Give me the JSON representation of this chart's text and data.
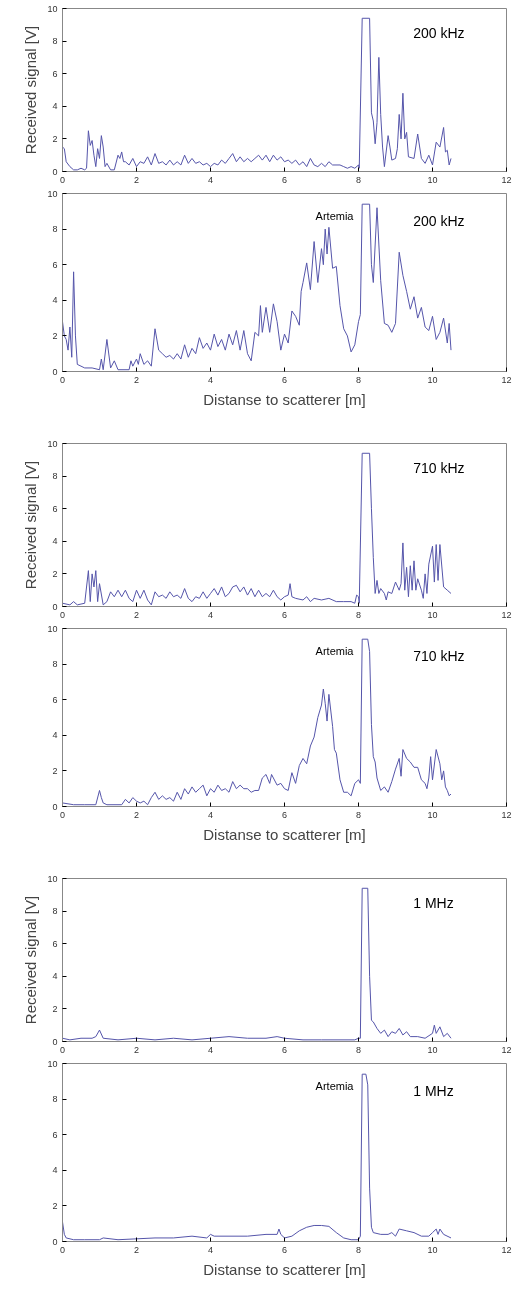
{
  "chart_data": [
    {
      "type": "line",
      "ylabel": "Received signal [V]",
      "xlim": [
        0,
        12
      ],
      "ylim": [
        0,
        10
      ],
      "xticks": [
        0,
        2,
        4,
        6,
        8,
        10,
        12
      ],
      "yticks": [
        0,
        2,
        4,
        6,
        8,
        10
      ],
      "grid": false,
      "annotations": [
        "200 kHz"
      ],
      "x": [
        0,
        0.05,
        0.1,
        0.2,
        0.3,
        0.4,
        0.5,
        0.6,
        0.65,
        0.7,
        0.75,
        0.8,
        0.85,
        0.9,
        0.95,
        1.0,
        1.05,
        1.1,
        1.15,
        1.2,
        1.3,
        1.4,
        1.5,
        1.55,
        1.6,
        1.65,
        1.7,
        1.8,
        1.9,
        2.0,
        2.1,
        2.2,
        2.3,
        2.4,
        2.5,
        2.6,
        2.7,
        2.8,
        2.9,
        3.0,
        3.1,
        3.2,
        3.3,
        3.4,
        3.5,
        3.6,
        3.7,
        3.8,
        3.9,
        4.0,
        4.1,
        4.2,
        4.3,
        4.4,
        4.5,
        4.6,
        4.7,
        4.8,
        4.9,
        5.0,
        5.1,
        5.2,
        5.3,
        5.4,
        5.5,
        5.6,
        5.7,
        5.8,
        5.9,
        6.0,
        6.1,
        6.2,
        6.3,
        6.4,
        6.5,
        6.6,
        6.7,
        6.8,
        6.9,
        7.0,
        7.1,
        7.2,
        7.3,
        7.5,
        7.6,
        7.7,
        7.8,
        7.9,
        8.0,
        8.02,
        8.1,
        8.3,
        8.35,
        8.4,
        8.45,
        8.5,
        8.55,
        8.6,
        8.65,
        8.7,
        8.8,
        8.85,
        8.9,
        9.0,
        9.05,
        9.1,
        9.15,
        9.2,
        9.25,
        9.3,
        9.35,
        9.5,
        9.6,
        9.7,
        9.8,
        9.9,
        10.0,
        10.1,
        10.2,
        10.3,
        10.35,
        10.4,
        10.45,
        10.5
      ],
      "series": [
        {
          "color": "#5555aa",
          "values": [
            1.5,
            1.4,
            0.6,
            0.3,
            0.1,
            0.1,
            0.2,
            0.1,
            0.2,
            2.5,
            1.6,
            1.9,
            1.0,
            0.3,
            1.4,
            0.8,
            2.2,
            1.5,
            0.3,
            0.5,
            0.1,
            0.1,
            1.0,
            0.8,
            1.2,
            0.6,
            0.6,
            0.4,
            0.8,
            0.3,
            0.6,
            0.5,
            0.9,
            0.4,
            1.1,
            0.5,
            0.6,
            0.4,
            0.7,
            0.4,
            0.6,
            0.4,
            1.0,
            0.5,
            0.8,
            0.5,
            0.6,
            0.4,
            0.5,
            0.3,
            0.5,
            0.4,
            0.7,
            0.5,
            0.8,
            1.1,
            0.6,
            0.9,
            0.6,
            0.8,
            0.6,
            0.8,
            1.0,
            0.7,
            1.0,
            0.6,
            1.0,
            0.7,
            0.9,
            0.6,
            0.7,
            0.5,
            0.7,
            0.4,
            0.6,
            0.3,
            0.8,
            0.4,
            0.3,
            0.5,
            0.3,
            0.6,
            0.4,
            0.4,
            0.3,
            0.2,
            0.3,
            0.2,
            0.4,
            0.2,
            9.4,
            9.4,
            3.6,
            3.1,
            1.7,
            3.0,
            7.0,
            3.5,
            1.5,
            0.3,
            2.2,
            1.5,
            0.7,
            0.8,
            1.4,
            3.5,
            2.0,
            4.8,
            2.0,
            2.4,
            0.9,
            0.8,
            2.3,
            0.8,
            0.5,
            1.0,
            0.4,
            1.8,
            1.5,
            2.7,
            1.2,
            1.3,
            0.4,
            0.8
          ]
        }
      ]
    },
    {
      "type": "line",
      "xlabel": "Distanse to scatterer [m]",
      "xlim": [
        0,
        12
      ],
      "ylim": [
        0,
        10
      ],
      "xticks": [
        0,
        2,
        4,
        6,
        8,
        10,
        12
      ],
      "yticks": [
        0,
        2,
        4,
        6,
        8,
        10
      ],
      "grid": false,
      "annotations": [
        "200 kHz",
        "Artemia"
      ],
      "x": [
        0,
        0.05,
        0.1,
        0.15,
        0.2,
        0.25,
        0.3,
        0.35,
        0.4,
        0.5,
        0.6,
        0.8,
        1.0,
        1.05,
        1.1,
        1.2,
        1.3,
        1.4,
        1.5,
        1.8,
        1.85,
        1.9,
        2.0,
        2.05,
        2.1,
        2.2,
        2.3,
        2.4,
        2.5,
        2.6,
        2.7,
        2.8,
        2.9,
        3.0,
        3.1,
        3.2,
        3.3,
        3.4,
        3.5,
        3.6,
        3.7,
        3.8,
        3.9,
        4.0,
        4.1,
        4.2,
        4.3,
        4.4,
        4.5,
        4.6,
        4.7,
        4.8,
        4.9,
        5.0,
        5.1,
        5.2,
        5.3,
        5.35,
        5.4,
        5.5,
        5.6,
        5.7,
        5.8,
        5.9,
        6.0,
        6.1,
        6.2,
        6.3,
        6.4,
        6.45,
        6.5,
        6.6,
        6.7,
        6.8,
        6.9,
        7.0,
        7.05,
        7.1,
        7.15,
        7.2,
        7.3,
        7.4,
        7.5,
        7.6,
        7.7,
        7.8,
        7.9,
        8.0,
        8.05,
        8.1,
        8.3,
        8.35,
        8.4,
        8.5,
        8.6,
        8.7,
        8.8,
        8.9,
        9.0,
        9.1,
        9.2,
        9.3,
        9.4,
        9.5,
        9.6,
        9.7,
        9.8,
        9.9,
        10.0,
        10.1,
        10.2,
        10.3,
        10.4,
        10.45,
        10.5
      ],
      "series": [
        {
          "color": "#5555aa",
          "values": [
            2.8,
            2.0,
            1.8,
            1.2,
            2.5,
            0.8,
            5.6,
            2.0,
            0.4,
            0.3,
            0.2,
            0.2,
            0.1,
            0.7,
            0.1,
            1.8,
            0.2,
            0.6,
            0.1,
            0.1,
            0.6,
            0.3,
            0.7,
            0.4,
            1.0,
            0.4,
            0.6,
            0.3,
            2.4,
            1.2,
            1.0,
            0.8,
            0.9,
            0.7,
            1.0,
            0.7,
            1.5,
            0.8,
            1.3,
            1.0,
            1.9,
            1.3,
            1.6,
            1.2,
            2.1,
            1.4,
            1.8,
            1.2,
            2.1,
            1.5,
            2.3,
            1.2,
            2.3,
            1.0,
            0.6,
            2.2,
            2.0,
            3.7,
            2.2,
            3.6,
            2.2,
            3.8,
            2.8,
            1.2,
            2.1,
            1.6,
            3.4,
            3.1,
            2.6,
            4.5,
            5.0,
            6.1,
            4.6,
            7.3,
            5.0,
            6.9,
            6.0,
            8.0,
            6.6,
            8.1,
            5.8,
            5.9,
            3.7,
            2.4,
            2.0,
            1.1,
            1.5,
            2.8,
            3.2,
            9.4,
            9.4,
            6.0,
            5.0,
            9.2,
            5.1,
            2.7,
            2.6,
            2.2,
            2.7,
            6.7,
            5.4,
            4.5,
            3.5,
            4.2,
            3.0,
            3.6,
            2.5,
            2.3,
            3.1,
            1.8,
            2.2,
            3.0,
            1.6,
            2.7,
            1.2
          ]
        }
      ]
    },
    {
      "type": "line",
      "ylabel": "Received signal [V]",
      "xlim": [
        0,
        12
      ],
      "ylim": [
        0,
        10
      ],
      "xticks": [
        0,
        2,
        4,
        6,
        8,
        10,
        12
      ],
      "yticks": [
        0,
        2,
        4,
        6,
        8,
        10
      ],
      "grid": false,
      "annotations": [
        "710 kHz"
      ],
      "x": [
        0,
        0.2,
        0.3,
        0.4,
        0.6,
        0.7,
        0.75,
        0.8,
        0.85,
        0.9,
        0.95,
        1.0,
        1.1,
        1.2,
        1.3,
        1.4,
        1.5,
        1.6,
        1.7,
        1.8,
        1.9,
        2.0,
        2.1,
        2.2,
        2.3,
        2.4,
        2.5,
        2.6,
        2.7,
        2.8,
        2.9,
        3.0,
        3.1,
        3.2,
        3.3,
        3.4,
        3.5,
        3.6,
        3.7,
        3.8,
        3.9,
        4.0,
        4.1,
        4.2,
        4.3,
        4.4,
        4.5,
        4.6,
        4.7,
        4.8,
        4.9,
        5.0,
        5.1,
        5.2,
        5.3,
        5.4,
        5.5,
        5.6,
        5.7,
        5.8,
        5.9,
        6.0,
        6.1,
        6.15,
        6.2,
        6.3,
        6.5,
        6.6,
        6.7,
        6.8,
        7.0,
        7.2,
        7.4,
        7.6,
        7.8,
        7.9,
        7.95,
        8.0,
        8.02,
        8.1,
        8.3,
        8.35,
        8.4,
        8.45,
        8.5,
        8.55,
        8.6,
        8.7,
        8.75,
        8.8,
        8.9,
        9.0,
        9.1,
        9.15,
        9.2,
        9.25,
        9.3,
        9.35,
        9.4,
        9.45,
        9.5,
        9.55,
        9.6,
        9.7,
        9.75,
        9.8,
        9.85,
        9.9,
        10.0,
        10.05,
        10.1,
        10.15,
        10.2,
        10.3,
        10.4,
        10.5
      ],
      "series": [
        {
          "color": "#5555aa",
          "values": [
            0.2,
            0.1,
            0.3,
            0.1,
            0.2,
            2.2,
            0.3,
            2.0,
            1.2,
            2.2,
            0.3,
            1.4,
            0.1,
            0.3,
            0.9,
            0.6,
            1.0,
            0.6,
            1.0,
            0.5,
            0.3,
            1.0,
            0.5,
            1.0,
            0.4,
            0.1,
            0.9,
            0.6,
            0.7,
            0.5,
            0.9,
            0.6,
            0.7,
            0.5,
            1.1,
            0.5,
            0.3,
            0.6,
            0.5,
            0.9,
            0.5,
            0.8,
            1.1,
            0.7,
            1.2,
            0.6,
            0.8,
            1.2,
            1.3,
            0.9,
            1.2,
            0.7,
            1.1,
            0.6,
            1.0,
            0.6,
            0.8,
            0.6,
            1.0,
            0.6,
            0.4,
            0.6,
            0.7,
            1.4,
            0.6,
            0.5,
            0.4,
            0.6,
            0.3,
            0.5,
            0.4,
            0.5,
            0.3,
            0.3,
            0.3,
            0.2,
            0.7,
            0.6,
            0.2,
            9.4,
            9.4,
            6.0,
            3.0,
            0.8,
            1.6,
            0.8,
            1.1,
            0.8,
            0.4,
            0.9,
            0.8,
            1.5,
            1.0,
            1.4,
            3.9,
            1.0,
            2.4,
            0.6,
            2.5,
            1.0,
            2.8,
            1.0,
            1.7,
            1.0,
            0.5,
            2.0,
            0.8,
            2.6,
            3.7,
            1.5,
            3.8,
            1.6,
            3.8,
            1.2,
            1.0,
            0.8
          ]
        }
      ]
    },
    {
      "type": "line",
      "xlabel": "Distanse to scatterer [m]",
      "xlim": [
        0,
        12
      ],
      "ylim": [
        0,
        10
      ],
      "xticks": [
        0,
        2,
        4,
        6,
        8,
        10,
        12
      ],
      "yticks": [
        0,
        2,
        4,
        6,
        8,
        10
      ],
      "grid": false,
      "annotations": [
        "710 kHz",
        "Artemia"
      ],
      "x": [
        0,
        0.3,
        0.6,
        0.9,
        1.0,
        1.05,
        1.1,
        1.2,
        1.6,
        1.7,
        1.8,
        1.9,
        2.0,
        2.1,
        2.2,
        2.3,
        2.4,
        2.5,
        2.6,
        2.7,
        2.8,
        2.9,
        3.0,
        3.1,
        3.2,
        3.3,
        3.4,
        3.5,
        3.6,
        3.7,
        3.8,
        3.9,
        4.0,
        4.1,
        4.2,
        4.3,
        4.4,
        4.5,
        4.6,
        4.7,
        4.8,
        4.9,
        5.0,
        5.1,
        5.2,
        5.3,
        5.4,
        5.5,
        5.6,
        5.65,
        5.8,
        5.9,
        6.0,
        6.1,
        6.2,
        6.3,
        6.4,
        6.5,
        6.6,
        6.7,
        6.8,
        6.9,
        7.0,
        7.05,
        7.1,
        7.15,
        7.2,
        7.3,
        7.35,
        7.4,
        7.5,
        7.6,
        7.7,
        7.8,
        7.9,
        8.0,
        8.05,
        8.1,
        8.25,
        8.3,
        8.35,
        8.4,
        8.45,
        8.5,
        8.6,
        8.7,
        8.8,
        8.9,
        9.0,
        9.1,
        9.15,
        9.2,
        9.3,
        9.4,
        9.5,
        9.6,
        9.7,
        9.8,
        9.85,
        9.9,
        9.95,
        10.0,
        10.1,
        10.2,
        10.25,
        10.3,
        10.35,
        10.4,
        10.45,
        10.5
      ],
      "series": [
        {
          "color": "#5555aa",
          "values": [
            0.2,
            0.1,
            0.1,
            0.1,
            0.9,
            0.5,
            0.2,
            0.1,
            0.1,
            0.4,
            0.2,
            0.5,
            0.3,
            0.2,
            0.3,
            0.1,
            0.5,
            0.8,
            0.4,
            0.6,
            0.4,
            0.5,
            0.3,
            0.8,
            0.4,
            1.0,
            0.7,
            1.1,
            0.8,
            1.0,
            1.2,
            0.6,
            1.0,
            0.8,
            1.2,
            0.9,
            1.0,
            0.8,
            1.4,
            1.0,
            1.2,
            1.0,
            1.0,
            0.8,
            0.9,
            0.9,
            1.6,
            1.8,
            1.3,
            1.8,
            1.2,
            1.3,
            1.0,
            0.9,
            1.9,
            1.3,
            2.3,
            2.7,
            2.4,
            3.4,
            3.9,
            5.0,
            5.7,
            6.6,
            5.8,
            4.8,
            6.3,
            4.5,
            3.2,
            3.0,
            1.5,
            0.8,
            0.8,
            0.6,
            1.3,
            1.5,
            1.3,
            9.4,
            9.4,
            8.7,
            4.6,
            2.8,
            2.5,
            1.6,
            0.9,
            1.1,
            0.8,
            1.4,
            2.1,
            2.7,
            1.7,
            3.2,
            2.7,
            2.5,
            2.2,
            2.2,
            1.5,
            1.3,
            1.0,
            1.6,
            2.8,
            1.5,
            3.2,
            2.4,
            1.5,
            2.0,
            1.1,
            0.9,
            0.6,
            0.7
          ]
        }
      ]
    },
    {
      "type": "line",
      "ylabel": "Received signal [V]",
      "xlim": [
        0,
        12
      ],
      "ylim": [
        0,
        10
      ],
      "xticks": [
        0,
        2,
        4,
        6,
        8,
        10,
        12
      ],
      "yticks": [
        0,
        2,
        4,
        6,
        8,
        10
      ],
      "grid": false,
      "annotations": [
        "1 MHz"
      ],
      "x": [
        0,
        0.2,
        0.5,
        0.8,
        0.9,
        1.0,
        1.1,
        1.5,
        2.0,
        2.5,
        3.0,
        3.5,
        4.0,
        4.5,
        5.0,
        5.5,
        5.8,
        6.0,
        6.5,
        7.0,
        7.5,
        7.9,
        8.0,
        8.05,
        8.1,
        8.25,
        8.3,
        8.35,
        8.4,
        8.5,
        8.6,
        8.7,
        8.8,
        8.9,
        9.0,
        9.1,
        9.2,
        9.3,
        9.4,
        9.6,
        9.8,
        10.0,
        10.05,
        10.1,
        10.2,
        10.3,
        10.4,
        10.5
      ],
      "series": [
        {
          "color": "#5555aa",
          "values": [
            0.2,
            0.1,
            0.2,
            0.2,
            0.3,
            0.7,
            0.2,
            0.1,
            0.2,
            0.1,
            0.2,
            0.1,
            0.2,
            0.3,
            0.2,
            0.2,
            0.3,
            0.2,
            0.1,
            0.1,
            0.1,
            0.1,
            0.2,
            0.2,
            9.4,
            9.4,
            4.0,
            1.3,
            1.2,
            0.8,
            0.5,
            0.7,
            0.3,
            0.6,
            0.5,
            0.8,
            0.4,
            0.6,
            0.3,
            0.3,
            0.2,
            0.5,
            1.0,
            0.5,
            0.9,
            0.3,
            0.5,
            0.2
          ]
        }
      ]
    },
    {
      "type": "line",
      "xlabel": "Distanse to scatterer [m]",
      "xlim": [
        0,
        12
      ],
      "ylim": [
        0,
        10
      ],
      "xticks": [
        0,
        2,
        4,
        6,
        8,
        10,
        12
      ],
      "yticks": [
        0,
        2,
        4,
        6,
        8,
        10
      ],
      "grid": false,
      "annotations": [
        "1 MHz",
        "Artemia"
      ],
      "x": [
        0,
        0.05,
        0.1,
        0.3,
        0.6,
        1.0,
        1.1,
        1.5,
        2.0,
        2.5,
        3.0,
        3.5,
        3.9,
        4.0,
        4.1,
        4.5,
        5.0,
        5.5,
        5.8,
        5.85,
        5.9,
        6.0,
        6.2,
        6.4,
        6.6,
        6.8,
        7.0,
        7.2,
        7.4,
        7.6,
        7.8,
        8.0,
        8.05,
        8.1,
        8.2,
        8.25,
        8.3,
        8.35,
        8.4,
        8.6,
        8.8,
        8.9,
        9.0,
        9.1,
        9.3,
        9.5,
        9.7,
        9.9,
        10.0,
        10.1,
        10.15,
        10.2,
        10.3,
        10.5
      ],
      "series": [
        {
          "color": "#5555aa",
          "values": [
            1.1,
            0.4,
            0.2,
            0.1,
            0.1,
            0.1,
            0.2,
            0.1,
            0.15,
            0.2,
            0.2,
            0.3,
            0.2,
            0.4,
            0.3,
            0.3,
            0.3,
            0.4,
            0.4,
            0.7,
            0.4,
            0.2,
            0.3,
            0.6,
            0.8,
            0.9,
            0.9,
            0.85,
            0.5,
            0.2,
            0.1,
            0.1,
            0.3,
            9.4,
            9.4,
            8.8,
            3.0,
            0.8,
            0.5,
            0.4,
            0.4,
            0.5,
            0.3,
            0.7,
            0.6,
            0.5,
            0.3,
            0.3,
            0.5,
            0.7,
            0.4,
            0.7,
            0.4,
            0.2
          ]
        }
      ]
    }
  ]
}
